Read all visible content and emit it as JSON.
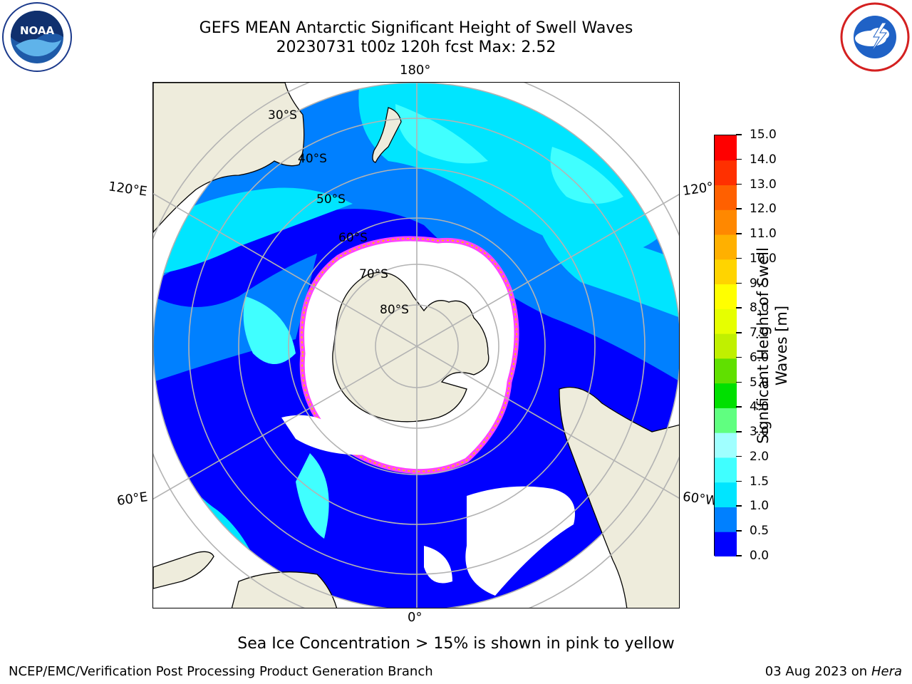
{
  "title_line1": "GEFS MEAN Antarctic Significant Height of Swell Waves",
  "title_line2": "20230731 t00z 120h fcst   Max: 2.52",
  "logos": {
    "left": "noaa-logo",
    "left_text": "NOAA",
    "right": "nws-logo"
  },
  "map": {
    "projection": "south-polar-stereographic",
    "lon_labels": {
      "top": "180°",
      "bottom": "0°",
      "left_upper": "120°E",
      "right_upper": "120°",
      "left_lower": "60°E",
      "right_lower": "60°W"
    },
    "lat_labels": [
      "30°S",
      "40°S",
      "50°S",
      "60°S",
      "70°S",
      "80°S"
    ],
    "colors": {
      "land": "#eeecdc",
      "coast": "#000000",
      "grid": "#b3b3b3",
      "ice_edge": "#ff44ff",
      "ice_inner": "#ffc000"
    }
  },
  "colorbar": {
    "title": "Significant Height of Swell Waves [m]",
    "ticks": [
      "0.0",
      "0.5",
      "1.0",
      "1.5",
      "2.0",
      "3.0",
      "4.0",
      "5.0",
      "6.0",
      "7.0",
      "8.0",
      "9.0",
      "10.0",
      "11.0",
      "12.0",
      "13.0",
      "14.0",
      "15.0"
    ],
    "colors": [
      "#0000ff",
      "#0080ff",
      "#00e5ff",
      "#40ffff",
      "#a0ffff",
      "#60ff80",
      "#00e000",
      "#60e000",
      "#c0f000",
      "#e6ff00",
      "#ffff00",
      "#ffd400",
      "#ffb000",
      "#ff8800",
      "#ff6000",
      "#ff3000",
      "#ff0000"
    ]
  },
  "note": "Sea Ice Concentration > 15% is shown in pink to yellow",
  "footer_left": "NCEP/EMC/Verification Post Processing Product Generation Branch",
  "footer_right_date": "03 Aug 2023 on",
  "footer_right_host": "Hera"
}
